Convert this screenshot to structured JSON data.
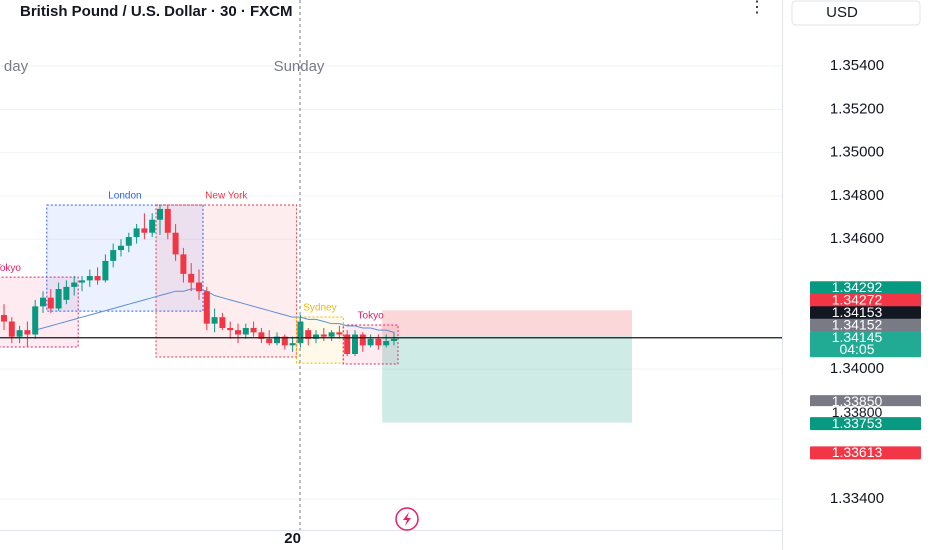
{
  "chart_data": {
    "type": "candlestick",
    "title": "British Pound / U.S. Dollar · 30 · FXCM",
    "currency": "USD",
    "day_labels": [
      "day",
      "Sunday"
    ],
    "categories": [
      null,
      null,
      null,
      null,
      null,
      null,
      null,
      null,
      null,
      null,
      null,
      null,
      null,
      null,
      null,
      null,
      null,
      null,
      null,
      null,
      null,
      null,
      null,
      null,
      null,
      null,
      null,
      null,
      null,
      null,
      null,
      null,
      null,
      null,
      null,
      null,
      null,
      "20",
      null,
      null,
      null,
      null,
      null,
      null,
      null,
      null,
      null,
      null,
      null,
      null,
      null
    ],
    "open": [
      1.3425,
      1.3422,
      1.3415,
      1.3418,
      1.3416,
      1.3429,
      1.3433,
      1.3428,
      1.3432,
      1.3438,
      1.344,
      1.3441,
      1.3443,
      1.3441,
      1.345,
      1.3455,
      1.3457,
      1.3461,
      1.3465,
      1.3463,
      1.3469,
      1.3474,
      1.3463,
      1.3453,
      1.3444,
      1.344,
      1.3436,
      1.3421,
      1.3424,
      1.3419,
      1.3418,
      1.3416,
      1.3419,
      1.3417,
      1.3414,
      1.3412,
      1.3415,
      1.3411,
      1.3412,
      1.3418,
      1.3414,
      1.3416,
      1.3415,
      1.3417,
      1.3416,
      1.3407,
      1.3416,
      1.3411,
      1.3414,
      1.3411,
      1.3413
    ],
    "high": [
      1.343,
      1.3424,
      1.342,
      1.3422,
      1.3432,
      1.3436,
      1.3437,
      1.344,
      1.3441,
      1.3443,
      1.3443,
      1.3446,
      1.3447,
      1.3453,
      1.3458,
      1.346,
      1.3463,
      1.3467,
      1.3472,
      1.3472,
      1.3476,
      1.3476,
      1.3467,
      1.3456,
      1.3449,
      1.3446,
      1.3438,
      1.3428,
      1.3426,
      1.3422,
      1.3421,
      1.3421,
      1.3422,
      1.3419,
      1.3418,
      1.3417,
      1.3416,
      1.3415,
      1.3425,
      1.3419,
      1.3418,
      1.3419,
      1.3418,
      1.342,
      1.3418,
      1.3418,
      1.3417,
      1.3416,
      1.3416,
      1.3416,
      1.3417
    ],
    "low": [
      1.3418,
      1.3412,
      1.3412,
      1.341,
      1.3414,
      1.3426,
      1.3426,
      1.3427,
      1.343,
      1.3434,
      1.3436,
      1.3438,
      1.3439,
      1.344,
      1.3447,
      1.3452,
      1.3454,
      1.3458,
      1.346,
      1.3461,
      1.3462,
      1.346,
      1.345,
      1.344,
      1.3436,
      1.3432,
      1.3418,
      1.3417,
      1.3418,
      1.3414,
      1.3412,
      1.3414,
      1.3415,
      1.3412,
      1.3411,
      1.3411,
      1.3409,
      1.3408,
      1.341,
      1.3411,
      1.3412,
      1.3413,
      1.3413,
      1.3414,
      1.3406,
      1.3406,
      1.3408,
      1.341,
      1.3409,
      1.341,
      1.3411
    ],
    "close": [
      1.3422,
      1.3415,
      1.3418,
      1.3416,
      1.3429,
      1.3433,
      1.3428,
      1.3437,
      1.3438,
      1.344,
      1.3441,
      1.3443,
      1.3441,
      1.345,
      1.3455,
      1.3457,
      1.3461,
      1.3465,
      1.3463,
      1.3469,
      1.3474,
      1.3463,
      1.3453,
      1.3444,
      1.344,
      1.3436,
      1.3421,
      1.3424,
      1.3419,
      1.3418,
      1.3416,
      1.3419,
      1.3417,
      1.3414,
      1.3412,
      1.3415,
      1.3411,
      1.3412,
      1.3422,
      1.3414,
      1.3416,
      1.3415,
      1.3417,
      1.3416,
      1.3407,
      1.3416,
      1.3411,
      1.3414,
      1.3411,
      1.3413,
      1.3414
    ],
    "up_color": "#089981",
    "down_color": "#f23645",
    "moving_average": {
      "color": "#5b8fd6",
      "values": [
        null,
        null,
        null,
        null,
        1.3418,
        1.3419,
        1.342,
        1.3421,
        1.3422,
        1.3423,
        1.3424,
        1.3425,
        1.3426,
        1.3427,
        1.3428,
        1.3429,
        1.343,
        1.3431,
        1.3432,
        1.3433,
        1.3434,
        1.3435,
        1.3436,
        1.3436,
        1.3437,
        1.3437,
        1.3436,
        1.3434,
        1.3433,
        1.3432,
        1.3431,
        1.343,
        1.3429,
        1.3428,
        1.3427,
        1.3426,
        1.3425,
        1.3424,
        1.3424,
        1.3423,
        1.3423,
        1.3422,
        1.3421,
        1.3421,
        1.342,
        1.342,
        1.3419,
        1.3419,
        1.3418,
        1.3418,
        1.3417
      ]
    },
    "sessions": [
      {
        "name": "Tokyo",
        "color": "#e91e63",
        "start": -8,
        "end": 9,
        "high": 1.34425,
        "low": 1.34102
      },
      {
        "name": "London",
        "color": "#2962ff",
        "start": 6,
        "end": 25,
        "high": 1.34758,
        "low": 1.34268
      },
      {
        "name": "New York",
        "color": "#f23645",
        "start": 20,
        "end": 37,
        "high": 1.34758,
        "low": 1.34056
      },
      {
        "name": "Sydney",
        "color": "#f5b800",
        "start": 38,
        "end": 43,
        "high": 1.34241,
        "low": 1.34028
      },
      {
        "name": "Tokyo",
        "color": "#e91e63",
        "start": 44,
        "end": 50,
        "high": 1.34204,
        "low": 1.34024
      }
    ],
    "position": {
      "start": 49,
      "end": 80,
      "entry": 1.34152,
      "stop": 1.34272,
      "target": 1.33753
    },
    "current_price": 1.34145,
    "price_tags": [
      {
        "value": 1.34292,
        "label": "1.34292",
        "color": "#089981"
      },
      {
        "value": 1.34272,
        "label": "1.34272",
        "color": "#f23645"
      },
      {
        "value": 1.34153,
        "label": "1.34153",
        "color": "#131722"
      },
      {
        "value": 1.34152,
        "label": "1.34152",
        "color": "#787b86"
      },
      {
        "value": 1.34145,
        "label": "1.34145",
        "sublabel": "04:05",
        "color": "#22ab94"
      },
      {
        "value": 1.3385,
        "label": "1.33850",
        "color": "#787b86"
      },
      {
        "value": 1.338,
        "label": "1.33800",
        "color": "#ffffff"
      },
      {
        "value": 1.33753,
        "label": "1.33753",
        "color": "#089981"
      },
      {
        "value": 1.33613,
        "label": "1.33613",
        "color": "#f23645"
      }
    ],
    "ylim": [
      1.33257,
      1.35705
    ],
    "yticks": [
      {
        "value": 1.354,
        "label": "1.35400"
      },
      {
        "value": 1.352,
        "label": "1.35200"
      },
      {
        "value": 1.35,
        "label": "1.35000"
      },
      {
        "value": 1.348,
        "label": "1.34800"
      },
      {
        "value": 1.346,
        "label": "1.34600"
      },
      {
        "value": 1.34,
        "label": "1.34000"
      },
      {
        "value": 1.334,
        "label": "1.33400"
      }
    ],
    "grid": true
  }
}
